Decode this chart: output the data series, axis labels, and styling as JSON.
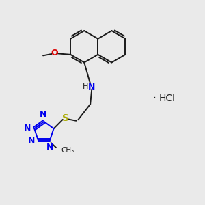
{
  "bg_color": "#eaeaea",
  "bond_color": "#1a1a1a",
  "N_color": "#0000ee",
  "O_color": "#dd0000",
  "S_color": "#aaaa00",
  "figsize": [
    3.0,
    3.0
  ],
  "dpi": 100,
  "xlim": [
    0,
    10
  ],
  "ylim": [
    0,
    10
  ]
}
